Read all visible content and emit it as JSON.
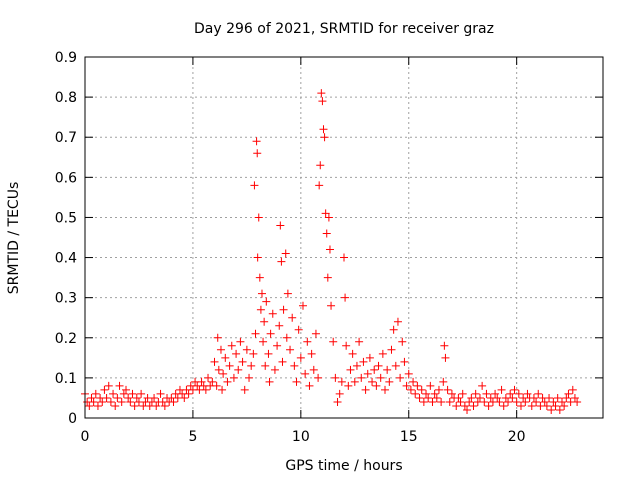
{
  "chart_data": {
    "type": "scatter",
    "title": "Day 296 of 2021, SRMTID for receiver graz",
    "xlabel": "GPS time / hours",
    "ylabel": "SRMTID / TECUs",
    "xlim": [
      0,
      24
    ],
    "ylim": [
      0,
      0.9
    ],
    "xticks": [
      0,
      5,
      10,
      15,
      20
    ],
    "yticks": [
      0,
      0.1,
      0.2,
      0.3,
      0.4,
      0.5,
      0.6,
      0.7,
      0.8,
      0.9
    ],
    "xtick_labels": [
      "0",
      "5",
      "10",
      "15",
      "20"
    ],
    "ytick_labels": [
      "0",
      "0.1",
      "0.2",
      "0.3",
      "0.4",
      "0.5",
      "0.6",
      "0.7",
      "0.8",
      "0.9"
    ],
    "grid": true,
    "marker": "+",
    "color": "#ff0000",
    "series": [
      {
        "name": "SRMTID",
        "points": [
          [
            0.0,
            0.06
          ],
          [
            0.1,
            0.04
          ],
          [
            0.2,
            0.03
          ],
          [
            0.3,
            0.05
          ],
          [
            0.4,
            0.04
          ],
          [
            0.5,
            0.06
          ],
          [
            0.6,
            0.03
          ],
          [
            0.7,
            0.05
          ],
          [
            0.8,
            0.04
          ],
          [
            0.9,
            0.07
          ],
          [
            1.0,
            0.05
          ],
          [
            1.1,
            0.08
          ],
          [
            1.2,
            0.04
          ],
          [
            1.3,
            0.06
          ],
          [
            1.4,
            0.03
          ],
          [
            1.5,
            0.05
          ],
          [
            1.6,
            0.08
          ],
          [
            1.7,
            0.04
          ],
          [
            1.8,
            0.06
          ],
          [
            1.9,
            0.07
          ],
          [
            2.0,
            0.05
          ],
          [
            2.1,
            0.04
          ],
          [
            2.2,
            0.06
          ],
          [
            2.3,
            0.03
          ],
          [
            2.4,
            0.05
          ],
          [
            2.5,
            0.04
          ],
          [
            2.6,
            0.06
          ],
          [
            2.7,
            0.03
          ],
          [
            2.8,
            0.04
          ],
          [
            2.9,
            0.05
          ],
          [
            3.0,
            0.03
          ],
          [
            3.1,
            0.04
          ],
          [
            3.2,
            0.05
          ],
          [
            3.3,
            0.03
          ],
          [
            3.4,
            0.04
          ],
          [
            3.5,
            0.06
          ],
          [
            3.6,
            0.04
          ],
          [
            3.7,
            0.03
          ],
          [
            3.8,
            0.05
          ],
          [
            3.9,
            0.04
          ],
          [
            4.0,
            0.05
          ],
          [
            4.1,
            0.04
          ],
          [
            4.2,
            0.06
          ],
          [
            4.3,
            0.05
          ],
          [
            4.4,
            0.07
          ],
          [
            4.5,
            0.06
          ],
          [
            4.6,
            0.05
          ],
          [
            4.7,
            0.07
          ],
          [
            4.8,
            0.06
          ],
          [
            4.9,
            0.08
          ],
          [
            5.0,
            0.07
          ],
          [
            5.1,
            0.09
          ],
          [
            5.2,
            0.08
          ],
          [
            5.3,
            0.07
          ],
          [
            5.4,
            0.09
          ],
          [
            5.5,
            0.08
          ],
          [
            5.6,
            0.07
          ],
          [
            5.7,
            0.1
          ],
          [
            5.8,
            0.08
          ],
          [
            5.9,
            0.09
          ],
          [
            6.0,
            0.14
          ],
          [
            6.1,
            0.08
          ],
          [
            6.15,
            0.2
          ],
          [
            6.2,
            0.12
          ],
          [
            6.3,
            0.17
          ],
          [
            6.35,
            0.07
          ],
          [
            6.4,
            0.11
          ],
          [
            6.5,
            0.15
          ],
          [
            6.6,
            0.09
          ],
          [
            6.7,
            0.13
          ],
          [
            6.8,
            0.18
          ],
          [
            6.9,
            0.1
          ],
          [
            7.0,
            0.16
          ],
          [
            7.1,
            0.12
          ],
          [
            7.2,
            0.19
          ],
          [
            7.3,
            0.14
          ],
          [
            7.4,
            0.07
          ],
          [
            7.5,
            0.17
          ],
          [
            7.6,
            0.1
          ],
          [
            7.7,
            0.13
          ],
          [
            7.8,
            0.16
          ],
          [
            7.85,
            0.58
          ],
          [
            7.9,
            0.21
          ],
          [
            7.95,
            0.69
          ],
          [
            7.98,
            0.66
          ],
          [
            8.0,
            0.4
          ],
          [
            8.05,
            0.5
          ],
          [
            8.1,
            0.35
          ],
          [
            8.15,
            0.27
          ],
          [
            8.2,
            0.31
          ],
          [
            8.25,
            0.19
          ],
          [
            8.3,
            0.24
          ],
          [
            8.35,
            0.13
          ],
          [
            8.4,
            0.29
          ],
          [
            8.5,
            0.16
          ],
          [
            8.55,
            0.09
          ],
          [
            8.6,
            0.21
          ],
          [
            8.7,
            0.26
          ],
          [
            8.8,
            0.12
          ],
          [
            8.9,
            0.18
          ],
          [
            9.0,
            0.23
          ],
          [
            9.05,
            0.48
          ],
          [
            9.1,
            0.39
          ],
          [
            9.15,
            0.14
          ],
          [
            9.2,
            0.27
          ],
          [
            9.3,
            0.41
          ],
          [
            9.35,
            0.2
          ],
          [
            9.4,
            0.31
          ],
          [
            9.5,
            0.17
          ],
          [
            9.6,
            0.25
          ],
          [
            9.7,
            0.13
          ],
          [
            9.8,
            0.09
          ],
          [
            9.9,
            0.22
          ],
          [
            10.0,
            0.15
          ],
          [
            10.1,
            0.28
          ],
          [
            10.2,
            0.11
          ],
          [
            10.3,
            0.19
          ],
          [
            10.4,
            0.08
          ],
          [
            10.5,
            0.16
          ],
          [
            10.6,
            0.12
          ],
          [
            10.7,
            0.21
          ],
          [
            10.8,
            0.1
          ],
          [
            10.85,
            0.58
          ],
          [
            10.9,
            0.63
          ],
          [
            10.95,
            0.81
          ],
          [
            11.0,
            0.79
          ],
          [
            11.05,
            0.72
          ],
          [
            11.1,
            0.7
          ],
          [
            11.15,
            0.51
          ],
          [
            11.2,
            0.46
          ],
          [
            11.25,
            0.35
          ],
          [
            11.3,
            0.5
          ],
          [
            11.35,
            0.42
          ],
          [
            11.4,
            0.28
          ],
          [
            11.5,
            0.19
          ],
          [
            11.6,
            0.1
          ],
          [
            11.7,
            0.04
          ],
          [
            11.8,
            0.06
          ],
          [
            11.9,
            0.09
          ],
          [
            12.0,
            0.4
          ],
          [
            12.05,
            0.3
          ],
          [
            12.1,
            0.18
          ],
          [
            12.2,
            0.08
          ],
          [
            12.3,
            0.12
          ],
          [
            12.4,
            0.16
          ],
          [
            12.5,
            0.09
          ],
          [
            12.6,
            0.13
          ],
          [
            12.7,
            0.19
          ],
          [
            12.8,
            0.1
          ],
          [
            12.9,
            0.14
          ],
          [
            13.0,
            0.07
          ],
          [
            13.1,
            0.11
          ],
          [
            13.2,
            0.15
          ],
          [
            13.3,
            0.09
          ],
          [
            13.4,
            0.12
          ],
          [
            13.5,
            0.08
          ],
          [
            13.6,
            0.13
          ],
          [
            13.7,
            0.1
          ],
          [
            13.8,
            0.16
          ],
          [
            13.9,
            0.07
          ],
          [
            14.0,
            0.12
          ],
          [
            14.1,
            0.09
          ],
          [
            14.2,
            0.17
          ],
          [
            14.3,
            0.22
          ],
          [
            14.4,
            0.13
          ],
          [
            14.5,
            0.24
          ],
          [
            14.6,
            0.1
          ],
          [
            14.7,
            0.19
          ],
          [
            14.8,
            0.14
          ],
          [
            14.9,
            0.08
          ],
          [
            15.0,
            0.11
          ],
          [
            15.1,
            0.07
          ],
          [
            15.2,
            0.09
          ],
          [
            15.3,
            0.06
          ],
          [
            15.4,
            0.08
          ],
          [
            15.5,
            0.05
          ],
          [
            15.6,
            0.07
          ],
          [
            15.7,
            0.04
          ],
          [
            15.8,
            0.06
          ],
          [
            15.9,
            0.05
          ],
          [
            16.0,
            0.08
          ],
          [
            16.1,
            0.04
          ],
          [
            16.2,
            0.06
          ],
          [
            16.3,
            0.05
          ],
          [
            16.4,
            0.07
          ],
          [
            16.5,
            0.04
          ],
          [
            16.6,
            0.09
          ],
          [
            16.65,
            0.18
          ],
          [
            16.7,
            0.15
          ],
          [
            16.8,
            0.07
          ],
          [
            16.9,
            0.04
          ],
          [
            17.0,
            0.06
          ],
          [
            17.1,
            0.05
          ],
          [
            17.2,
            0.03
          ],
          [
            17.3,
            0.05
          ],
          [
            17.4,
            0.04
          ],
          [
            17.5,
            0.06
          ],
          [
            17.6,
            0.03
          ],
          [
            17.7,
            0.02
          ],
          [
            17.8,
            0.04
          ],
          [
            17.9,
            0.05
          ],
          [
            18.0,
            0.03
          ],
          [
            18.1,
            0.06
          ],
          [
            18.2,
            0.04
          ],
          [
            18.3,
            0.05
          ],
          [
            18.4,
            0.08
          ],
          [
            18.5,
            0.04
          ],
          [
            18.6,
            0.06
          ],
          [
            18.7,
            0.03
          ],
          [
            18.8,
            0.05
          ],
          [
            18.9,
            0.04
          ],
          [
            19.0,
            0.06
          ],
          [
            19.1,
            0.05
          ],
          [
            19.2,
            0.04
          ],
          [
            19.3,
            0.07
          ],
          [
            19.4,
            0.03
          ],
          [
            19.5,
            0.05
          ],
          [
            19.6,
            0.04
          ],
          [
            19.7,
            0.06
          ],
          [
            19.8,
            0.05
          ],
          [
            19.9,
            0.07
          ],
          [
            20.0,
            0.04
          ],
          [
            20.1,
            0.06
          ],
          [
            20.2,
            0.03
          ],
          [
            20.3,
            0.05
          ],
          [
            20.4,
            0.04
          ],
          [
            20.5,
            0.06
          ],
          [
            20.6,
            0.05
          ],
          [
            20.7,
            0.03
          ],
          [
            20.8,
            0.05
          ],
          [
            20.9,
            0.04
          ],
          [
            21.0,
            0.06
          ],
          [
            21.1,
            0.03
          ],
          [
            21.2,
            0.05
          ],
          [
            21.3,
            0.04
          ],
          [
            21.4,
            0.03
          ],
          [
            21.5,
            0.05
          ],
          [
            21.6,
            0.02
          ],
          [
            21.7,
            0.04
          ],
          [
            21.8,
            0.03
          ],
          [
            21.9,
            0.05
          ],
          [
            22.0,
            0.02
          ],
          [
            22.1,
            0.04
          ],
          [
            22.2,
            0.03
          ],
          [
            22.3,
            0.05
          ],
          [
            22.4,
            0.06
          ],
          [
            22.5,
            0.04
          ],
          [
            22.6,
            0.07
          ],
          [
            22.7,
            0.05
          ],
          [
            22.8,
            0.04
          ]
        ]
      }
    ]
  }
}
